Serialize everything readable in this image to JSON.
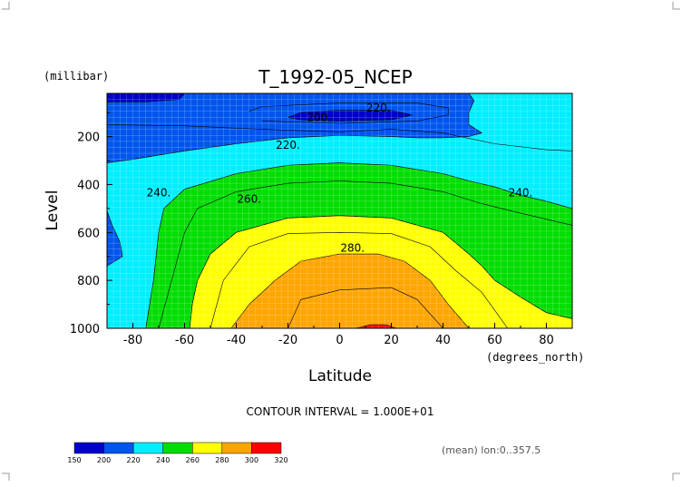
{
  "chart_data": {
    "type": "heatmap",
    "title": "T_1992-05_NCEP",
    "xlabel": "Latitude",
    "ylabel": "Level",
    "xunits": "(degrees_north)",
    "yunits": "(millibar)",
    "xlim": [
      -90,
      90
    ],
    "ylim": [
      1000,
      20
    ],
    "x_ticks": [
      -80,
      -60,
      -40,
      -20,
      0,
      20,
      40,
      60,
      80
    ],
    "y_ticks": [
      200,
      400,
      600,
      800,
      1000
    ],
    "x_tick_labels": [
      "-80",
      "-60",
      "-40",
      "-20",
      "0",
      "20",
      "40",
      "60",
      "80"
    ],
    "y_tick_labels": [
      "200",
      "400",
      "600",
      "800",
      "1000"
    ],
    "grid": true,
    "contour_interval_text": "CONTOUR INTERVAL = 1.000E+01",
    "footer_text": "(mean) lon:0..357.5",
    "contour_labels": [
      {
        "text": "220.",
        "lat": 15,
        "lev": 80
      },
      {
        "text": "200.",
        "lat": -8,
        "lev": 120
      },
      {
        "text": "220.",
        "lat": -20,
        "lev": 235
      },
      {
        "text": "240.",
        "lat": -70,
        "lev": 435
      },
      {
        "text": "260.",
        "lat": -35,
        "lev": 460
      },
      {
        "text": "240.",
        "lat": 70,
        "lev": 435
      },
      {
        "text": "280.",
        "lat": 5,
        "lev": 665
      }
    ],
    "colorbar": {
      "levels": [
        150,
        200,
        220,
        240,
        260,
        280,
        300,
        320
      ],
      "level_labels": [
        "150",
        "200",
        "220",
        "240",
        "260",
        "280",
        "300",
        "320"
      ],
      "colors": [
        "#0000cc",
        "#0055ee",
        "#00eeff",
        "#00dd00",
        "#ffff00",
        "#ffa500",
        "#ff0000"
      ]
    },
    "regions": [
      {
        "value_range": [
          200,
          220
        ],
        "color": "#0055ee",
        "points": [
          [
            -90,
            20
          ],
          [
            50,
            20
          ],
          [
            52,
            50
          ],
          [
            50,
            100
          ],
          [
            50,
            150
          ],
          [
            55,
            185
          ],
          [
            50,
            200
          ],
          [
            40,
            205
          ],
          [
            30,
            205
          ],
          [
            20,
            200
          ],
          [
            0,
            195
          ],
          [
            -20,
            205
          ],
          [
            -40,
            230
          ],
          [
            -60,
            260
          ],
          [
            -80,
            295
          ],
          [
            -90,
            310
          ]
        ]
      },
      {
        "value_range": [
          220,
          240
        ],
        "color": "#00eeff",
        "points": [
          [
            -90,
            310
          ],
          [
            -80,
            295
          ],
          [
            -60,
            260
          ],
          [
            -40,
            230
          ],
          [
            -20,
            205
          ],
          [
            0,
            195
          ],
          [
            20,
            200
          ],
          [
            30,
            205
          ],
          [
            40,
            205
          ],
          [
            50,
            200
          ],
          [
            55,
            185
          ],
          [
            50,
            150
          ],
          [
            50,
            100
          ],
          [
            52,
            50
          ],
          [
            50,
            20
          ],
          [
            90,
            20
          ],
          [
            90,
            500
          ],
          [
            80,
            470
          ],
          [
            70,
            445
          ],
          [
            60,
            410
          ],
          [
            50,
            385
          ],
          [
            40,
            355
          ],
          [
            20,
            320
          ],
          [
            0,
            310
          ],
          [
            -20,
            320
          ],
          [
            -40,
            355
          ],
          [
            -60,
            420
          ],
          [
            -68,
            500
          ],
          [
            -70,
            600
          ],
          [
            -72,
            800
          ],
          [
            -75,
            1000
          ],
          [
            -90,
            1000
          ]
        ]
      },
      {
        "value_range": [
          200,
          220
        ],
        "color": "#0055ee",
        "points": [
          [
            -90,
            510
          ],
          [
            -88,
            570
          ],
          [
            -85,
            640
          ],
          [
            -84,
            700
          ],
          [
            -90,
            740
          ]
        ]
      },
      {
        "value_range": [
          240,
          260
        ],
        "color": "#00dd00",
        "points": [
          [
            -75,
            1000
          ],
          [
            -72,
            800
          ],
          [
            -70,
            600
          ],
          [
            -68,
            500
          ],
          [
            -60,
            420
          ],
          [
            -40,
            355
          ],
          [
            -20,
            320
          ],
          [
            0,
            310
          ],
          [
            20,
            320
          ],
          [
            40,
            355
          ],
          [
            50,
            385
          ],
          [
            60,
            410
          ],
          [
            70,
            445
          ],
          [
            80,
            470
          ],
          [
            90,
            500
          ],
          [
            90,
            960
          ],
          [
            80,
            935
          ],
          [
            70,
            870
          ],
          [
            60,
            800
          ],
          [
            55,
            740
          ],
          [
            50,
            690
          ],
          [
            40,
            600
          ],
          [
            20,
            540
          ],
          [
            0,
            530
          ],
          [
            -20,
            540
          ],
          [
            -40,
            600
          ],
          [
            -50,
            690
          ],
          [
            -55,
            800
          ],
          [
            -57,
            900
          ],
          [
            -58,
            1000
          ]
        ]
      },
      {
        "value_range": [
          260,
          280
        ],
        "color": "#ffff00",
        "points": [
          [
            -58,
            1000
          ],
          [
            -57,
            900
          ],
          [
            -55,
            800
          ],
          [
            -50,
            690
          ],
          [
            -40,
            600
          ],
          [
            -20,
            540
          ],
          [
            0,
            530
          ],
          [
            20,
            540
          ],
          [
            40,
            600
          ],
          [
            50,
            690
          ],
          [
            55,
            740
          ],
          [
            60,
            800
          ],
          [
            70,
            870
          ],
          [
            80,
            935
          ],
          [
            90,
            960
          ],
          [
            90,
            1000
          ]
        ]
      },
      {
        "value_range": [
          280,
          300
        ],
        "color": "#ffa500",
        "points": [
          [
            -42,
            1000
          ],
          [
            -35,
            900
          ],
          [
            -25,
            800
          ],
          [
            -15,
            720
          ],
          [
            0,
            690
          ],
          [
            15,
            690
          ],
          [
            25,
            720
          ],
          [
            35,
            800
          ],
          [
            42,
            900
          ],
          [
            50,
            1000
          ]
        ]
      },
      {
        "value_range": [
          300,
          320
        ],
        "color": "#ff0000",
        "points": [
          [
            6,
            1000
          ],
          [
            12,
            985
          ],
          [
            18,
            985
          ],
          [
            22,
            1000
          ]
        ]
      },
      {
        "value_range": [
          150,
          200
        ],
        "color": "#0000cc",
        "points": [
          [
            -20,
            120
          ],
          [
            -15,
            100
          ],
          [
            0,
            90
          ],
          [
            20,
            90
          ],
          [
            28,
            110
          ],
          [
            20,
            130
          ],
          [
            0,
            135
          ],
          [
            -15,
            130
          ]
        ]
      },
      {
        "value_range": [
          150,
          200
        ],
        "color": "#0000cc",
        "points": [
          [
            -90,
            20
          ],
          [
            -60,
            20
          ],
          [
            -62,
            45
          ],
          [
            -75,
            55
          ],
          [
            -90,
            55
          ]
        ]
      }
    ],
    "contours": [
      {
        "value": 210,
        "points": [
          [
            -35,
            95
          ],
          [
            -30,
            75
          ],
          [
            0,
            60
          ],
          [
            30,
            60
          ],
          [
            42,
            80
          ],
          [
            42,
            110
          ],
          [
            30,
            135
          ],
          [
            0,
            145
          ],
          [
            -30,
            135
          ]
        ]
      },
      {
        "value": 250,
        "points": [
          [
            -70,
            1000
          ],
          [
            -65,
            800
          ],
          [
            -60,
            600
          ],
          [
            -55,
            500
          ],
          [
            -40,
            430
          ],
          [
            -20,
            395
          ],
          [
            0,
            385
          ],
          [
            20,
            395
          ],
          [
            40,
            430
          ],
          [
            55,
            480
          ],
          [
            70,
            520
          ],
          [
            90,
            570
          ]
        ]
      },
      {
        "value": 270,
        "points": [
          [
            -50,
            1000
          ],
          [
            -45,
            800
          ],
          [
            -35,
            660
          ],
          [
            -20,
            605
          ],
          [
            0,
            600
          ],
          [
            20,
            605
          ],
          [
            35,
            660
          ],
          [
            45,
            760
          ],
          [
            55,
            850
          ],
          [
            65,
            1000
          ]
        ]
      },
      {
        "value": 290,
        "points": [
          [
            -20,
            1000
          ],
          [
            -15,
            880
          ],
          [
            0,
            840
          ],
          [
            20,
            830
          ],
          [
            30,
            880
          ],
          [
            40,
            1000
          ]
        ]
      },
      {
        "value": 230,
        "points": [
          [
            -90,
            150
          ],
          [
            -60,
            155
          ],
          [
            -30,
            170
          ],
          [
            0,
            180
          ],
          [
            20,
            170
          ],
          [
            40,
            185
          ],
          [
            60,
            230
          ],
          [
            80,
            255
          ],
          [
            90,
            260
          ]
        ]
      }
    ]
  }
}
